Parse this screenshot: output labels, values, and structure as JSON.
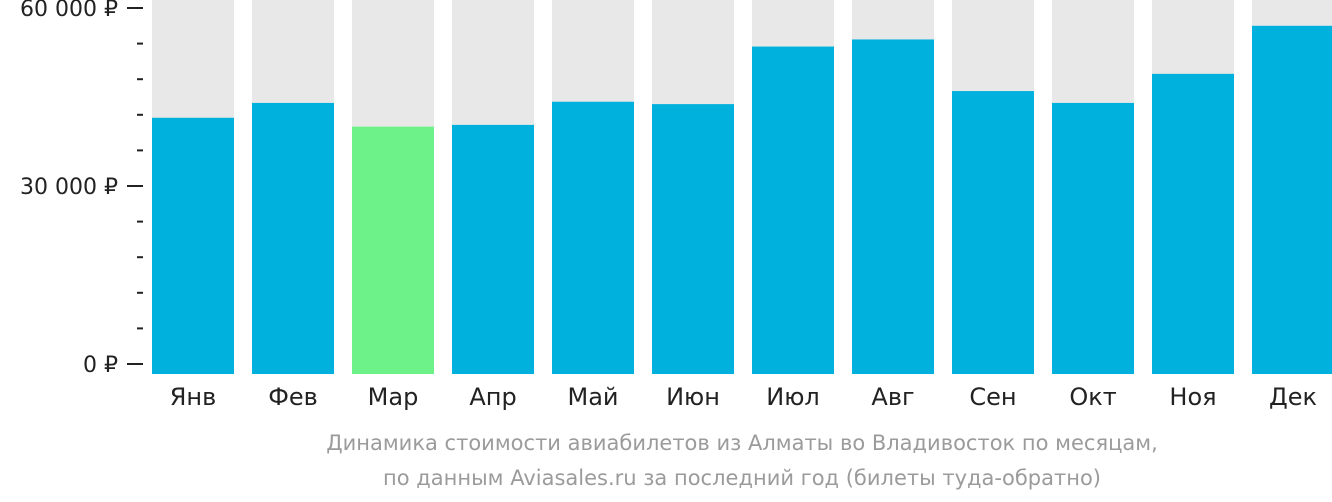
{
  "chart_data": {
    "type": "bar",
    "categories": [
      "Янв",
      "Фев",
      "Мар",
      "Апр",
      "Май",
      "Июн",
      "Июл",
      "Авг",
      "Сен",
      "Окт",
      "Ноя",
      "Дек"
    ],
    "values": [
      41500,
      44000,
      40000,
      40300,
      44200,
      43800,
      53500,
      54700,
      46000,
      44000,
      48900,
      57000
    ],
    "highlight_category": "Мар",
    "ylim": [
      0,
      60000
    ],
    "yticks": [
      0,
      30000,
      60000
    ],
    "ytick_labels": [
      "0 ₽",
      "30 000 ₽",
      "60 000 ₽"
    ],
    "minor_tick_step": 6000,
    "colors": {
      "bar": "#00b0dd",
      "highlight": "#6df28a",
      "background_bar": "#e8e8e8",
      "axis": "#222222"
    }
  },
  "caption": {
    "line1": "Динамика стоимости авиабилетов из Алматы во Владивосток по месяцам,",
    "line2": "по данным Aviasales.ru за последний год (билеты туда-обратно)"
  }
}
